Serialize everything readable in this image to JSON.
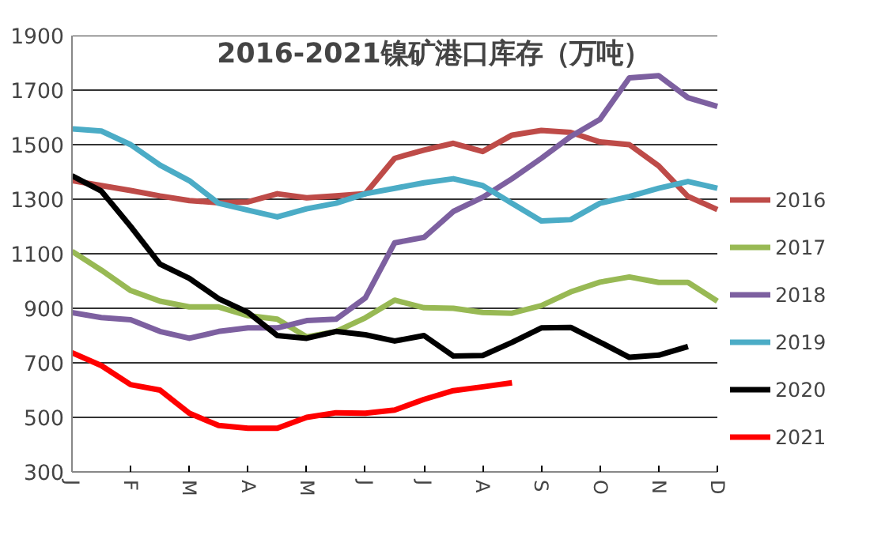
{
  "chart_data": {
    "type": "line",
    "title": "2016-2021镍矿港口库存（万吨）",
    "categories": [
      "J",
      null,
      "F",
      null,
      "M",
      null,
      "A",
      null,
      "M",
      null,
      "J",
      null,
      "J",
      null,
      "A",
      null,
      "S",
      null,
      "O",
      null,
      "N",
      null,
      "D"
    ],
    "ylim": [
      300,
      1900
    ],
    "yticks": [
      300,
      500,
      700,
      900,
      1100,
      1300,
      1500,
      1700,
      1900
    ],
    "grid": "y",
    "legend": "right",
    "marker": "none",
    "line_style": "solid",
    "series": [
      {
        "name": "2016",
        "color": "#be4b48",
        "values": [
          1368,
          1350,
          1332,
          1312,
          1295,
          1287,
          1290,
          1320,
          1305,
          1312,
          1320,
          1450,
          1480,
          1505,
          1475,
          1535,
          1552,
          1545,
          1510,
          1500,
          1422,
          1310,
          1262
        ]
      },
      {
        "name": "2017",
        "color": "#98b954",
        "values": [
          1109,
          1040,
          965,
          926,
          905,
          905,
          873,
          860,
          795,
          815,
          865,
          930,
          902,
          900,
          885,
          882,
          910,
          960,
          996,
          1015,
          995,
          995,
          926
        ]
      },
      {
        "name": "2018",
        "color": "#7d60a0",
        "values": [
          884,
          866,
          858,
          815,
          790,
          815,
          828,
          828,
          855,
          860,
          938,
          1140,
          1160,
          1255,
          1307,
          1375,
          1450,
          1530,
          1593,
          1745,
          1753,
          1672,
          1640
        ]
      },
      {
        "name": "2019",
        "color": "#4bacc6",
        "values": [
          1558,
          1550,
          1500,
          1425,
          1368,
          1285,
          1260,
          1235,
          1265,
          1285,
          1320,
          1340,
          1360,
          1375,
          1350,
          1285,
          1220,
          1225,
          1285,
          1310,
          1340,
          1365,
          1340
        ]
      },
      {
        "name": "2020",
        "color": "#000000",
        "values": [
          1386,
          1330,
          1200,
          1062,
          1010,
          935,
          885,
          800,
          790,
          815,
          803,
          780,
          800,
          725,
          727,
          775,
          828,
          830,
          776,
          720,
          728,
          760,
          null
        ]
      },
      {
        "name": "2021",
        "color": "#ff0000",
        "values": [
          737,
          690,
          620,
          600,
          515,
          470,
          460,
          460,
          500,
          517,
          515,
          527,
          566,
          598,
          612,
          627,
          null,
          null,
          null,
          null,
          null,
          null,
          null
        ]
      }
    ]
  }
}
